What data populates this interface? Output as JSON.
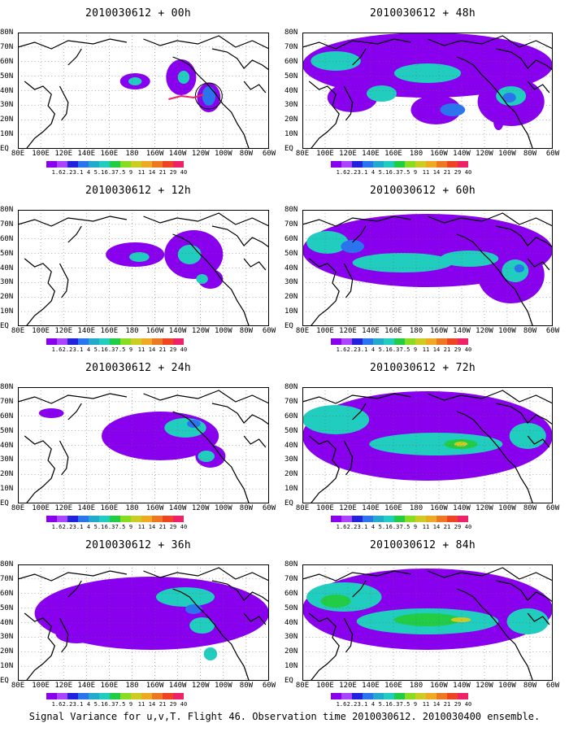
{
  "panels": [
    {
      "title": "2010030612 + 00h"
    },
    {
      "title": "2010030612 + 48h"
    },
    {
      "title": "2010030612 + 12h"
    },
    {
      "title": "2010030612 + 60h"
    },
    {
      "title": "2010030612 + 24h"
    },
    {
      "title": "2010030612 + 72h"
    },
    {
      "title": "2010030612 + 36h"
    },
    {
      "title": "2010030612 + 84h"
    }
  ],
  "lat_labels": [
    "80N",
    "70N",
    "60N",
    "50N",
    "40N",
    "30N",
    "20N",
    "10N",
    "EQ"
  ],
  "lon_labels": [
    "80E",
    "100E",
    "120E",
    "140E",
    "160E",
    "180",
    "160W",
    "140W",
    "120W",
    "100W",
    "80W",
    "60W"
  ],
  "colorbar": {
    "colors": [
      "#8800ee",
      "#aa44ff",
      "#2222dd",
      "#2a74ee",
      "#22aacc",
      "#20cdbe",
      "#22cc44",
      "#88dd22",
      "#cccc22",
      "#eeaa22",
      "#ee7722",
      "#ee4422",
      "#ee2266"
    ],
    "labels": [
      "1.6",
      "2.2",
      "3.1",
      "4",
      "5.1",
      "6.3",
      "7.5",
      "9",
      "11",
      "14",
      "21",
      "29",
      "40"
    ]
  },
  "footer": "Signal Variance for u,v,T. Flight 46. Observation time 2010030612. 2010030400 ensemble."
}
